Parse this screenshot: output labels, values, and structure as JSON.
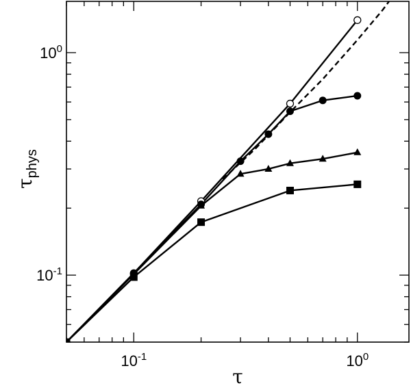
{
  "chart_data": {
    "type": "line",
    "title": "",
    "xlabel": "τ",
    "ylabel_main": "τ",
    "ylabel_sub": "phys",
    "xscale": "log",
    "yscale": "log",
    "xlim": [
      0.05,
      1.7
    ],
    "ylim": [
      0.05,
      1.7
    ],
    "grid": false,
    "legend": "none",
    "x_ticks": [
      {
        "base": "10",
        "exp": "-1",
        "value": 0.1
      },
      {
        "base": "10",
        "exp": "0",
        "value": 1
      }
    ],
    "y_ticks": [
      {
        "base": "10",
        "exp": "-1",
        "value": 0.1
      },
      {
        "base": "10",
        "exp": "0",
        "value": 1
      }
    ],
    "series": [
      {
        "marker": "open-circle",
        "line": "solid",
        "x": [
          0.05,
          0.1,
          0.2,
          0.5,
          1.0
        ],
        "y": [
          0.05,
          0.102,
          0.215,
          0.59,
          1.4
        ]
      },
      {
        "marker": "filled-circle",
        "line": "solid",
        "x": [
          0.05,
          0.1,
          0.2,
          0.3,
          0.4,
          0.5,
          0.7,
          1.0
        ],
        "y": [
          0.05,
          0.102,
          0.208,
          0.325,
          0.43,
          0.545,
          0.61,
          0.64
        ]
      },
      {
        "marker": "triangle",
        "line": "solid",
        "x": [
          0.05,
          0.1,
          0.2,
          0.3,
          0.4,
          0.5,
          0.7,
          1.0
        ],
        "y": [
          0.05,
          0.101,
          0.205,
          0.285,
          0.3,
          0.318,
          0.333,
          0.356
        ]
      },
      {
        "marker": "square",
        "line": "solid",
        "x": [
          0.05,
          0.1,
          0.2,
          0.5,
          1.0
        ],
        "y": [
          0.05,
          0.098,
          0.173,
          0.24,
          0.256
        ]
      },
      {
        "marker": "none",
        "line": "dashed",
        "x": [
          0.25,
          0.35,
          0.5,
          0.7,
          1.0,
          1.3,
          1.7
        ],
        "y": [
          0.27,
          0.37,
          0.54,
          0.76,
          1.14,
          1.56,
          2.25
        ]
      }
    ]
  }
}
